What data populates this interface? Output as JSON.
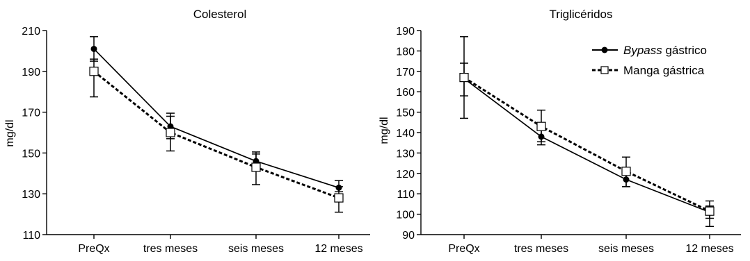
{
  "chart_data": [
    {
      "type": "line",
      "title": "Colesterol",
      "ylabel": "mg/dl",
      "xlabel": "",
      "categories": [
        "PreQx",
        "tres meses",
        "seis meses",
        "12 meses"
      ],
      "ylim": [
        110,
        210
      ],
      "yticks": [
        110,
        130,
        150,
        170,
        190,
        210
      ],
      "grid": false,
      "series": [
        {
          "name": "Bypass gástrico",
          "values": [
            201,
            163,
            146,
            133
          ],
          "error_low": [
            195,
            157,
            143,
            131
          ],
          "error_high": [
            207,
            169.5,
            150.5,
            136.5
          ],
          "marker": "filled-circle",
          "line": "solid",
          "color": "#000000"
        },
        {
          "name": "Manga gástrica",
          "values": [
            190,
            160,
            143,
            128
          ],
          "error_low": [
            177.5,
            151,
            134.5,
            121
          ],
          "error_high": [
            196,
            168,
            149.5,
            133.5
          ],
          "marker": "open-square",
          "line": "dashed",
          "color": "#000000"
        }
      ]
    },
    {
      "type": "line",
      "title": "Triglicéridos",
      "ylabel": "mg/dl",
      "xlabel": "",
      "categories": [
        "PreQx",
        "tres meses",
        "seis meses",
        "12 meses"
      ],
      "ylim": [
        90,
        190
      ],
      "yticks": [
        90,
        100,
        110,
        120,
        130,
        140,
        150,
        160,
        170,
        180,
        190
      ],
      "grid": false,
      "legend": {
        "placement": "top-right",
        "entries": [
          {
            "italic": "Bypass",
            "text": " gástrico"
          },
          {
            "italic": "",
            "text": "Manga gástrica"
          }
        ]
      },
      "series": [
        {
          "name": "Bypass gástrico",
          "values": [
            166.5,
            138,
            117,
            101
          ],
          "error_low": [
            147,
            134,
            113.5,
            98
          ],
          "error_high": [
            187,
            142,
            121,
            104
          ],
          "marker": "filled-circle",
          "line": "solid",
          "color": "#000000"
        },
        {
          "name": "Manga gástrica",
          "values": [
            167,
            143,
            121,
            101.5
          ],
          "error_low": [
            158,
            135.5,
            113.5,
            94
          ],
          "error_high": [
            174,
            151,
            128,
            106.5
          ],
          "marker": "open-square",
          "line": "dashed",
          "color": "#000000"
        }
      ]
    }
  ]
}
